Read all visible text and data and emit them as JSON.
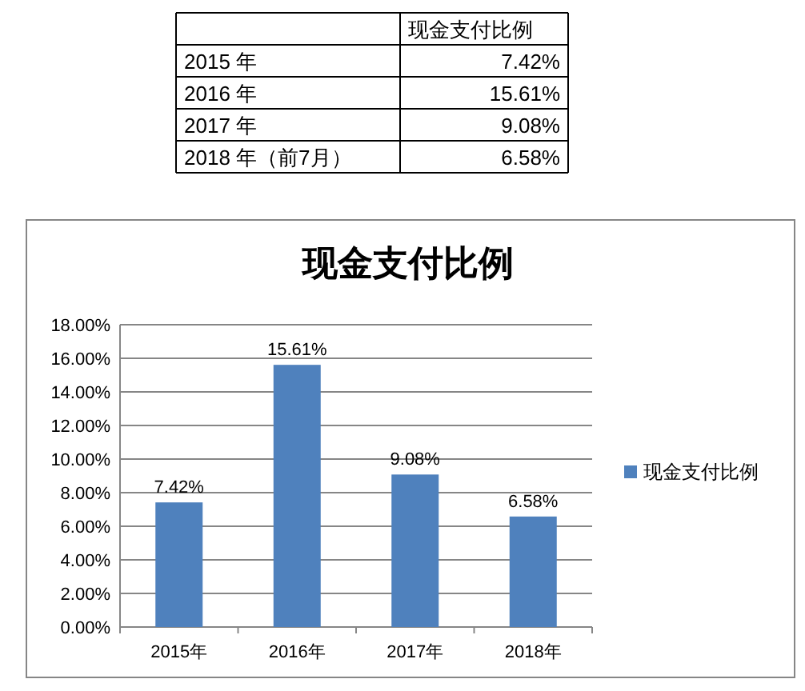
{
  "chart_data": {
    "type": "bar",
    "title": "现金支付比例",
    "categories": [
      "2015年",
      "2016年",
      "2017年",
      "2018年"
    ],
    "series": [
      {
        "name": "现金支付比例",
        "color": "#4f81bd",
        "values": [
          7.42,
          15.61,
          9.08,
          6.58
        ],
        "value_labels": [
          "7.42%",
          "15.61%",
          "9.08%",
          "6.58%"
        ]
      }
    ],
    "ylim": [
      0,
      18
    ],
    "yticks": [
      {
        "value": 0,
        "label": "0.00%"
      },
      {
        "value": 2,
        "label": "2.00%"
      },
      {
        "value": 4,
        "label": "4.00%"
      },
      {
        "value": 6,
        "label": "6.00%"
      },
      {
        "value": 8,
        "label": "8.00%"
      },
      {
        "value": 10,
        "label": "10.00%"
      },
      {
        "value": 12,
        "label": "12.00%"
      },
      {
        "value": 14,
        "label": "14.00%"
      },
      {
        "value": 16,
        "label": "16.00%"
      },
      {
        "value": 18,
        "label": "18.00%"
      }
    ],
    "grid": "y",
    "legend": "right",
    "annotations": [
      "现金支付比例",
      "2015 年",
      "2016 年",
      "2017 年",
      "2018 年（前7月）"
    ]
  }
}
